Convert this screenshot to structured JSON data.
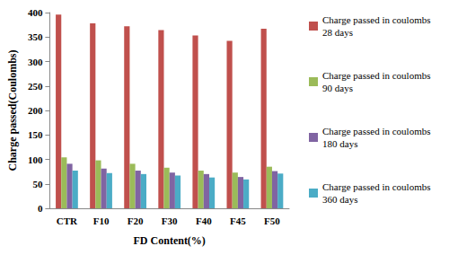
{
  "chart_data": {
    "type": "bar",
    "x_label": "FD Content(%)",
    "y_label": "Charge passed(Coulombs)",
    "categories": [
      "CTR",
      "F10",
      "F20",
      "F30",
      "F40",
      "F45",
      "F50"
    ],
    "series": [
      {
        "name": "Charge passed in coulombs 28 days",
        "color": "#c0504d",
        "values": [
          396,
          378,
          372,
          364,
          353,
          342,
          367
        ]
      },
      {
        "name": "Charge passed in coulombs 90 days",
        "color": "#9bbb59",
        "values": [
          104,
          98,
          91,
          83,
          77,
          73,
          85
        ]
      },
      {
        "name": "Charge passed in coulombs 180 days",
        "color": "#8064a2",
        "values": [
          91,
          81,
          77,
          73,
          70,
          64,
          76
        ]
      },
      {
        "name": "Charge passed in coulombs 360 days",
        "color": "#4bacc6",
        "values": [
          77,
          72,
          70,
          67,
          63,
          59,
          71
        ]
      }
    ],
    "ylim": [
      0,
      400
    ],
    "yticks": [
      0,
      50,
      100,
      150,
      200,
      250,
      300,
      350,
      400
    ],
    "grid": false,
    "legend": "right"
  }
}
